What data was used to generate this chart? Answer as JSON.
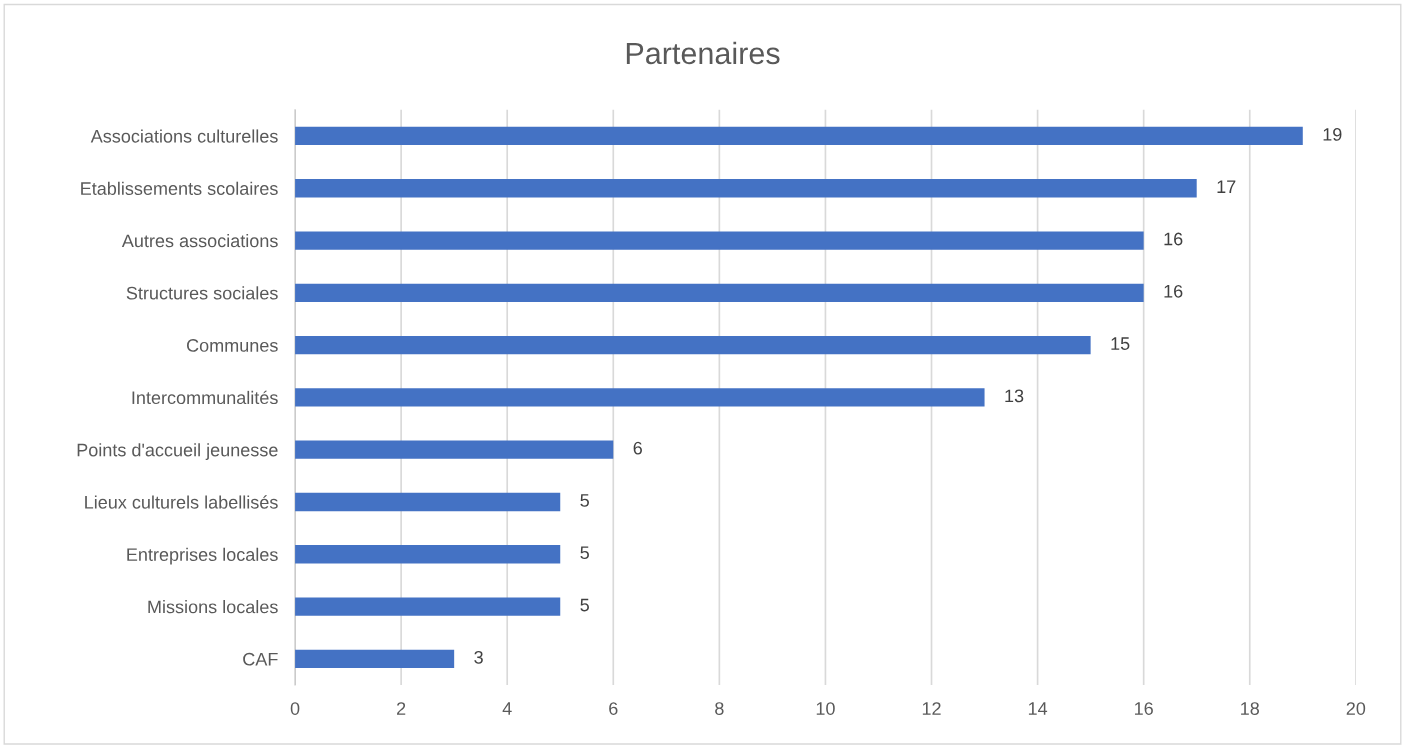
{
  "chart_data": {
    "type": "bar",
    "orientation": "horizontal",
    "title": "Partenaires",
    "categories": [
      "Associations culturelles",
      "Etablissements scolaires",
      "Autres associations",
      "Structures sociales",
      "Communes",
      "Intercommunalités",
      "Points d'accueil jeunesse",
      "Lieux culturels labellisés",
      "Entreprises locales",
      "Missions locales",
      "CAF"
    ],
    "values": [
      19,
      17,
      16,
      16,
      15,
      13,
      6,
      5,
      5,
      5,
      3
    ],
    "color": "#4472c4",
    "xlim": [
      0,
      20
    ],
    "xticks": [
      0,
      2,
      4,
      6,
      8,
      10,
      12,
      14,
      16,
      18,
      20
    ],
    "grid": "x",
    "data_labels": true,
    "legend": false
  }
}
